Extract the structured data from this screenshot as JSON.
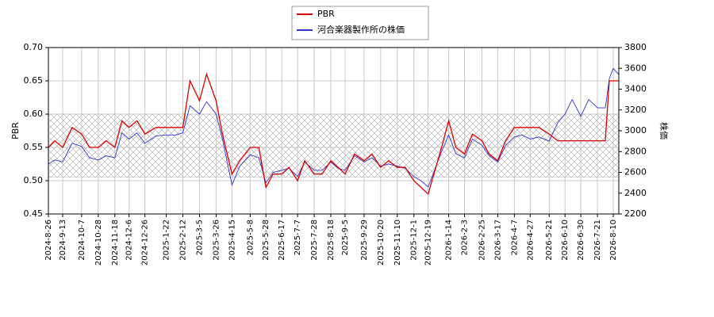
{
  "chart_data": {
    "type": "line",
    "x": [
      "2024-8-26",
      "2024-9-3",
      "2024-9-13",
      "2024-9-25",
      "2024-10-7",
      "2024-10-17",
      "2024-10-28",
      "2024-11-7",
      "2024-11-18",
      "2024-11-27",
      "2024-12-6",
      "2024-12-16",
      "2024-12-26",
      "2025-1-9",
      "2025-1-22",
      "2025-2-3",
      "2025-2-12",
      "2025-2-21",
      "2025-3-5",
      "2025-3-14",
      "2025-3-26",
      "2025-4-3",
      "2025-4-15",
      "2025-4-25",
      "2025-5-8",
      "2025-5-19",
      "2025-5-28",
      "2025-6-6",
      "2025-6-17",
      "2025-6-26",
      "2025-7-7",
      "2025-7-16",
      "2025-7-28",
      "2025-8-7",
      "2025-8-18",
      "2025-8-27",
      "2025-9-5",
      "2025-9-17",
      "2025-9-29",
      "2025-10-9",
      "2025-10-20",
      "2025-10-30",
      "2025-11-10",
      "2025-11-20",
      "2025-12-1",
      "2025-12-10",
      "2025-12-19",
      "2026-1-5",
      "2026-1-14",
      "2026-1-23",
      "2026-2-3",
      "2026-2-13",
      "2026-2-25",
      "2026-3-6",
      "2026-3-17",
      "2026-3-27",
      "2026-4-7",
      "2026-4-17",
      "2026-4-27",
      "2026-5-8",
      "2026-5-21",
      "2026-6-1",
      "2026-6-10",
      "2026-6-19",
      "2026-6-30",
      "2026-7-10",
      "2026-7-21",
      "2026-7-31",
      "2026-8-5",
      "2026-8-10",
      "2026-8-17"
    ],
    "series": [
      {
        "name": "PBR",
        "color": "#dd0000",
        "values": [
          0.55,
          0.56,
          0.55,
          0.58,
          0.57,
          0.55,
          0.55,
          0.56,
          0.55,
          0.59,
          0.58,
          0.59,
          0.57,
          0.58,
          0.58,
          0.58,
          0.58,
          0.65,
          0.62,
          0.66,
          0.62,
          0.57,
          0.51,
          0.53,
          0.55,
          0.55,
          0.49,
          0.51,
          0.51,
          0.52,
          0.5,
          0.53,
          0.51,
          0.51,
          0.53,
          0.52,
          0.51,
          0.54,
          0.53,
          0.54,
          0.52,
          0.53,
          0.52,
          0.52,
          0.5,
          0.49,
          0.48,
          0.55,
          0.59,
          0.55,
          0.54,
          0.57,
          0.56,
          0.54,
          0.53,
          0.56,
          0.58,
          0.58,
          0.58,
          0.58,
          0.57,
          0.56,
          0.56,
          0.56,
          0.56,
          0.56,
          0.56,
          0.56,
          0.65,
          0.65,
          0.65
        ]
      },
      {
        "name": "河合楽器製作所の株価",
        "color": "#3333cc",
        "axis": "y2",
        "values": [
          2680,
          2720,
          2700,
          2880,
          2850,
          2740,
          2720,
          2760,
          2740,
          2980,
          2920,
          2980,
          2880,
          2950,
          2960,
          2960,
          2980,
          3240,
          3160,
          3280,
          3160,
          2920,
          2480,
          2660,
          2770,
          2740,
          2500,
          2600,
          2620,
          2640,
          2560,
          2700,
          2620,
          2620,
          2700,
          2640,
          2620,
          2760,
          2700,
          2740,
          2660,
          2680,
          2660,
          2640,
          2560,
          2520,
          2460,
          2800,
          2960,
          2780,
          2740,
          2920,
          2860,
          2760,
          2700,
          2860,
          2940,
          2960,
          2920,
          2940,
          2900,
          3080,
          3160,
          3300,
          3140,
          3300,
          3220,
          3220,
          3500,
          3600,
          3540
        ]
      }
    ],
    "xlim": [
      "2024-8-26",
      "2026-8-17"
    ],
    "xticks": [
      "2024-8-26",
      "2024-9-13",
      "2024-10-7",
      "2024-10-28",
      "2024-11-18",
      "2024-12-6",
      "2024-12-26",
      "2025-1-22",
      "2025-2-12",
      "2025-3-5",
      "2025-3-26",
      "2025-4-15",
      "2025-5-8",
      "2025-5-28",
      "2025-6-17",
      "2025-7-7",
      "2025-7-28",
      "2025-8-18",
      "2025-9-5",
      "2025-9-29",
      "2025-10-20",
      "2025-11-10",
      "2025-12-1",
      "2025-12-19",
      "2026-1-14",
      "2026-2-3",
      "2026-2-25",
      "2026-3-17",
      "2026-4-7",
      "2026-4-27",
      "2026-5-21",
      "2026-6-10",
      "2026-6-30",
      "2026-7-21",
      "2026-8-10"
    ],
    "ylabel": "PBR",
    "ylim": [
      0.45,
      0.7
    ],
    "yticks": [
      {
        "value": 0.45,
        "label": "0.45"
      },
      {
        "value": 0.5,
        "label": "0.50"
      },
      {
        "value": 0.55,
        "label": "0.55"
      },
      {
        "value": 0.6,
        "label": "0.60"
      },
      {
        "value": 0.65,
        "label": "0.65"
      },
      {
        "value": 0.7,
        "label": "0.70"
      }
    ],
    "y2label": "株価",
    "y2lim": [
      2200,
      3800
    ],
    "y2ticks": [
      2200,
      2400,
      2600,
      2800,
      3000,
      3200,
      3400,
      3600,
      3800
    ],
    "shaded_range": [
      0.505,
      0.6
    ],
    "grid": true,
    "legend": "top"
  }
}
